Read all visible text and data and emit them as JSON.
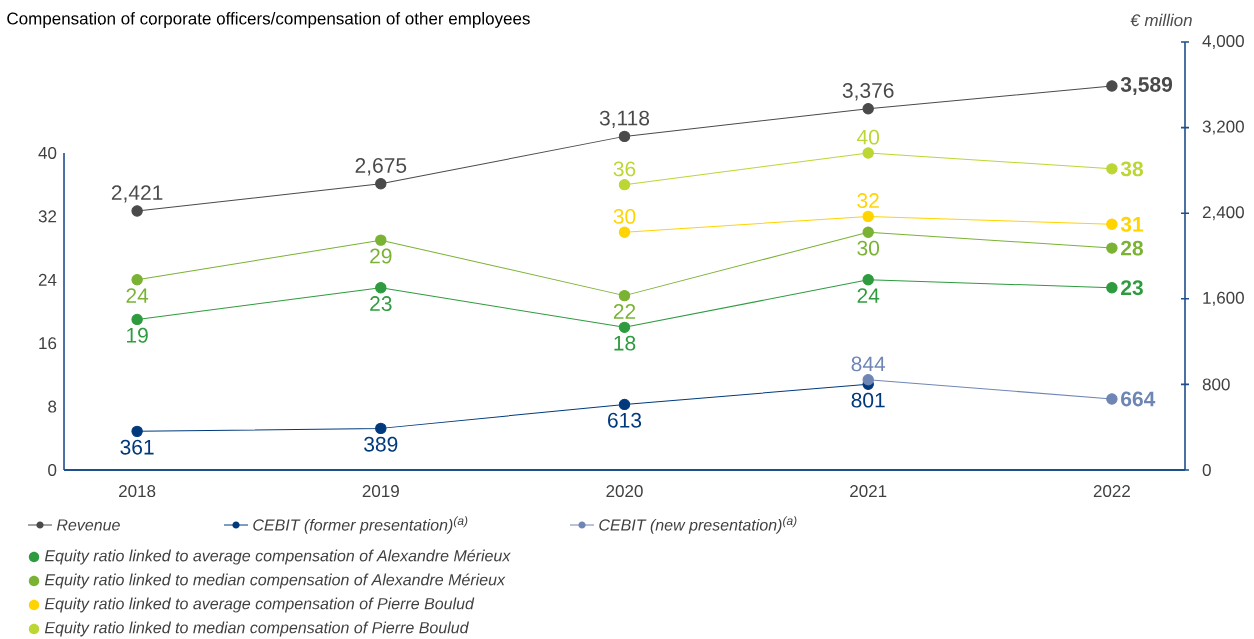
{
  "chart_data": {
    "type": "line",
    "title": "Compensation of corporate officers/compensation of other employees",
    "y2label": "€ million",
    "categories": [
      "2018",
      "2019",
      "2020",
      "2021",
      "2022"
    ],
    "ylim": [
      0,
      54
    ],
    "yticks": [
      0,
      8,
      16,
      24,
      32,
      40
    ],
    "y2lim": [
      0,
      4000
    ],
    "y2ticks": [
      {
        "value": 0,
        "label": "0"
      },
      {
        "value": 800,
        "label": "800"
      },
      {
        "value": 1600,
        "label": "1,600"
      },
      {
        "value": 2400,
        "label": "2,400"
      },
      {
        "value": 3200,
        "label": "3,200"
      },
      {
        "value": 4000,
        "label": "4,000"
      }
    ],
    "marker": "circle",
    "legend": "bottom",
    "series": [
      {
        "name": "Revenue",
        "color": "#4a4a4a",
        "axis": "y2",
        "values": [
          2421,
          2675,
          3118,
          3376,
          3589
        ],
        "value_labels": [
          "2,421",
          "2,675",
          "3,118",
          "3,376",
          "3,589"
        ]
      },
      {
        "name": "CEBIT (former presentation)$^{(a)}$",
        "color": "#003a7d",
        "axis": "y2",
        "values": [
          361,
          389,
          613,
          801,
          null
        ],
        "value_labels": [
          "361",
          "389",
          "613",
          "801",
          null
        ]
      },
      {
        "name": "CEBIT (new presentation)$^{(a)}$",
        "color": "#6f86b5",
        "axis": "y2",
        "values": [
          null,
          null,
          null,
          844,
          664
        ],
        "value_labels": [
          null,
          null,
          null,
          "844",
          "664"
        ]
      },
      {
        "name": "Equity ratio linked to average compensation of Alexandre Mérieux",
        "color": "#2e9b3f",
        "axis": "y",
        "values": [
          19,
          23,
          18,
          24,
          23
        ],
        "value_labels": [
          "19",
          "23",
          "18",
          "24",
          "23"
        ]
      },
      {
        "name": "Equity ratio linked to median compensation of Alexandre Mérieux",
        "color": "#7ab234",
        "axis": "y",
        "values": [
          24,
          29,
          22,
          30,
          28
        ],
        "value_labels": [
          "24",
          "29",
          "22",
          "30",
          "28"
        ]
      },
      {
        "name": "Equity ratio linked to average compensation of Pierre Boulud",
        "color": "#ffd400",
        "axis": "y",
        "values": [
          null,
          null,
          30,
          32,
          31
        ],
        "value_labels": [
          null,
          null,
          "30",
          "32",
          "31"
        ]
      },
      {
        "name": "Equity ratio linked to median compensation of Pierre Boulud",
        "color": "#bcd634",
        "axis": "y",
        "values": [
          null,
          null,
          36,
          40,
          38
        ],
        "value_labels": [
          null,
          null,
          "36",
          "40",
          "38"
        ]
      }
    ]
  }
}
